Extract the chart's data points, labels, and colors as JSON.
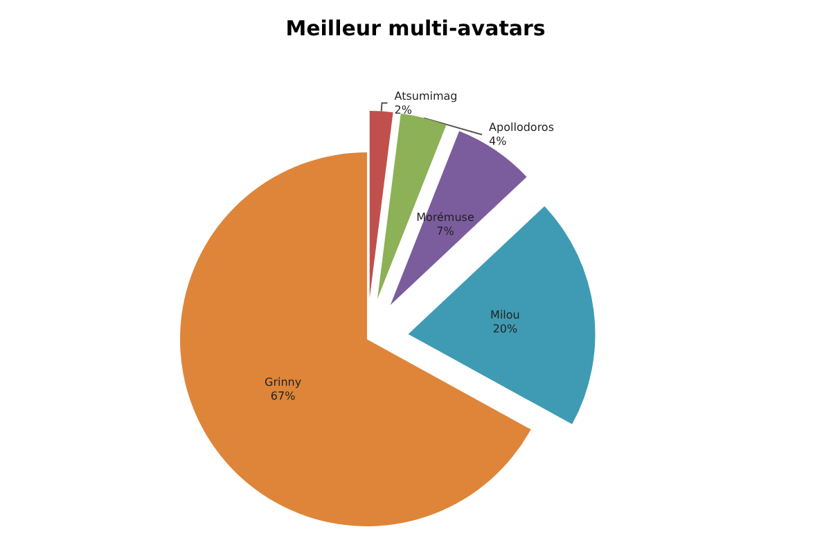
{
  "chart_data": {
    "type": "pie",
    "title": "Meilleur multi-avatars",
    "categories": [
      "Atsumimag",
      "Apollodoros",
      "Morémuse",
      "Milou",
      "Grinny"
    ],
    "values": [
      2,
      4,
      7,
      20,
      67
    ],
    "colors": [
      "#c0504d",
      "#8db156",
      "#7b5c9d",
      "#3f9bb3",
      "#de8539"
    ],
    "value_labels": [
      "2%",
      "4%",
      "7%",
      "20%",
      "67%"
    ],
    "legend": false
  }
}
